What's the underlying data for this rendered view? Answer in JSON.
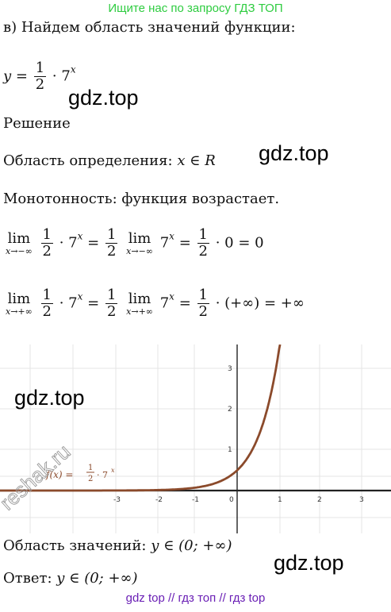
{
  "banner": "Ищите нас по запросу ГДЗ ТОП",
  "task": "в) Найдем область значений функции:",
  "func": {
    "lhs": "y",
    "eq": "=",
    "num": "1",
    "den": "2",
    "dot": "· 7",
    "exp": "x"
  },
  "watermarks": [
    "gdz.top",
    "gdz.top",
    "gdz.top",
    "gdz.top"
  ],
  "solution_label": "Решение",
  "domain": {
    "text": "Область определения:",
    "expr": "x ∈ R"
  },
  "monotonic": "Монотонность: функция возрастает.",
  "limit1": {
    "lim": "lim",
    "sub": "x→−∞",
    "num": "1",
    "den": "2",
    "mid": "· 7",
    "exp": "x",
    "eq1": "=",
    "num2": "1",
    "den2": "2",
    "lim2": "lim",
    "sub2": "x→−∞",
    "mid2": "7",
    "exp2": "x",
    "eq2": "=",
    "num3": "1",
    "den3": "2",
    "tail": "· 0 = 0"
  },
  "limit2": {
    "lim": "lim",
    "sub": "x→+∞",
    "num": "1",
    "den": "2",
    "mid": "· 7",
    "exp": "x",
    "eq1": "=",
    "num2": "1",
    "den2": "2",
    "lim2": "lim",
    "sub2": "x→+∞",
    "mid2": "7",
    "exp2": "x",
    "eq2": "=",
    "num3": "1",
    "den3": "2",
    "tail": "· (+∞) = +∞"
  },
  "graph": {
    "x_ticks": [
      "-3",
      "-2",
      "-1",
      "0",
      "1",
      "2",
      "3"
    ],
    "y_ticks": [
      "1",
      "2",
      "3"
    ],
    "label": {
      "f": "f(x) =",
      "num": "1",
      "den": "2",
      "rest": "· 7",
      "exp": "x"
    },
    "stamp": "reshak.ru",
    "curve_color": "#8b4a2b",
    "axis_color": "#222222"
  },
  "range": {
    "text": "Область значений:",
    "expr": "y ∈ (0; +∞)"
  },
  "answer": {
    "text": "Ответ:",
    "expr": "y ∈ (0; +∞)"
  },
  "footer": "gdz top  //  гдз топ  //  гдз top"
}
